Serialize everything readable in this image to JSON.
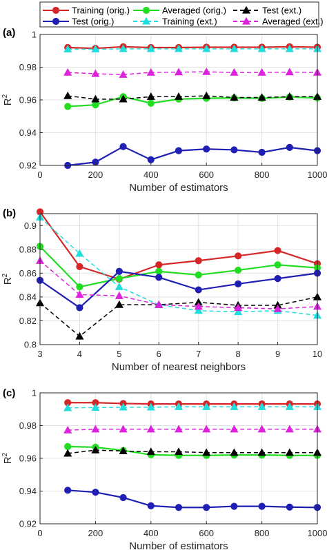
{
  "legend": {
    "entries": [
      {
        "label": "Training (orig.)",
        "color": "#d62728",
        "dash": false,
        "marker": "circle"
      },
      {
        "label": "Averaged (orig.)",
        "color": "#22dd22",
        "dash": false,
        "marker": "circle"
      },
      {
        "label": "Test (ext.)",
        "color": "#000000",
        "dash": true,
        "marker": "triangle"
      },
      {
        "label": "Test (orig.)",
        "color": "#1f1fb4",
        "dash": false,
        "marker": "circle"
      },
      {
        "label": "Training (ext.)",
        "color": "#22dddd",
        "dash": true,
        "marker": "triangle"
      },
      {
        "label": "Averaged (ext.)",
        "color": "#dd22dd",
        "dash": true,
        "marker": "triangle"
      }
    ]
  },
  "chart_data": [
    {
      "panel_label": "(a)",
      "type": "line",
      "xlabel": "Number of estimators",
      "ylabel": "R",
      "ylabel_sup": "2",
      "xlim": [
        0,
        1000
      ],
      "ylim": [
        0.92,
        1.0
      ],
      "xticks": [
        0,
        200,
        400,
        600,
        800,
        1000
      ],
      "xtick_labels": [
        "0",
        "200",
        "400",
        "600",
        "800",
        "1000"
      ],
      "yticks": [
        0.92,
        0.94,
        0.96,
        0.98,
        1.0
      ],
      "ytick_labels": [
        "0.92",
        "0.94",
        "0.96",
        "0.98",
        "1"
      ],
      "grid": true,
      "x": [
        100,
        200,
        300,
        400,
        500,
        600,
        700,
        800,
        900,
        1000
      ],
      "series": [
        {
          "name": "Training (orig.)",
          "values": [
            0.992,
            0.9915,
            0.9925,
            0.992,
            0.992,
            0.9922,
            0.9922,
            0.9922,
            0.9925,
            0.9922
          ]
        },
        {
          "name": "Averaged (orig.)",
          "values": [
            0.956,
            0.957,
            0.962,
            0.958,
            0.9605,
            0.961,
            0.9612,
            0.961,
            0.9618,
            0.9612
          ]
        },
        {
          "name": "Test (ext.)",
          "values": [
            0.9625,
            0.9605,
            0.9605,
            0.962,
            0.962,
            0.9625,
            0.9615,
            0.9615,
            0.962,
            0.962
          ]
        },
        {
          "name": "Test (orig.)",
          "values": [
            0.92,
            0.922,
            0.9315,
            0.9235,
            0.929,
            0.93,
            0.9295,
            0.928,
            0.931,
            0.929
          ]
        },
        {
          "name": "Training (ext.)",
          "values": [
            0.991,
            0.991,
            0.9912,
            0.9912,
            0.9912,
            0.9912,
            0.9912,
            0.9912,
            0.9912,
            0.9912
          ]
        },
        {
          "name": "Averaged (ext.)",
          "values": [
            0.9768,
            0.976,
            0.9755,
            0.9768,
            0.977,
            0.9772,
            0.9768,
            0.9768,
            0.977,
            0.9768
          ]
        }
      ]
    },
    {
      "panel_label": "(b)",
      "type": "line",
      "xlabel": "Number of nearest neighbors",
      "ylabel": "R",
      "ylabel_sup": "2",
      "xlim": [
        3,
        10
      ],
      "ylim": [
        0.8,
        0.91
      ],
      "xticks": [
        3,
        4,
        5,
        6,
        7,
        8,
        9,
        10
      ],
      "xtick_labels": [
        "3",
        "4",
        "5",
        "6",
        "7",
        "8",
        "9",
        "10"
      ],
      "yticks": [
        0.8,
        0.82,
        0.84,
        0.86,
        0.88,
        0.9
      ],
      "ytick_labels": [
        "0.8",
        "0.82",
        "0.84",
        "0.86",
        "0.88",
        "0.9"
      ],
      "grid": true,
      "x": [
        3,
        4,
        5,
        6,
        7,
        8,
        9,
        10
      ],
      "series": [
        {
          "name": "Training (orig.)",
          "values": [
            0.9115,
            0.8655,
            0.855,
            0.867,
            0.8705,
            0.8745,
            0.879,
            0.868
          ]
        },
        {
          "name": "Averaged (orig.)",
          "values": [
            0.8825,
            0.8485,
            0.8555,
            0.8615,
            0.8585,
            0.8625,
            0.867,
            0.8645
          ]
        },
        {
          "name": "Test (ext.)",
          "values": [
            0.835,
            0.807,
            0.8335,
            0.8335,
            0.8355,
            0.833,
            0.833,
            0.84
          ]
        },
        {
          "name": "Test (orig.)",
          "values": [
            0.854,
            0.831,
            0.8615,
            0.8565,
            0.846,
            0.851,
            0.8555,
            0.86
          ]
        },
        {
          "name": "Training (ext.)",
          "values": [
            0.907,
            0.8765,
            0.8485,
            0.8335,
            0.8285,
            0.8275,
            0.8285,
            0.8245
          ]
        },
        {
          "name": "Averaged (ext.)",
          "values": [
            0.8705,
            0.842,
            0.841,
            0.8335,
            0.832,
            0.831,
            0.83,
            0.832
          ]
        }
      ]
    },
    {
      "panel_label": "(c)",
      "type": "line",
      "xlabel": "Number of estimators",
      "ylabel": "R",
      "ylabel_sup": "2",
      "xlim": [
        0,
        1000
      ],
      "ylim": [
        0.92,
        1.0
      ],
      "xticks": [
        0,
        200,
        400,
        600,
        800,
        1000
      ],
      "xtick_labels": [
        "0",
        "200",
        "400",
        "600",
        "800",
        "1000"
      ],
      "yticks": [
        0.92,
        0.94,
        0.96,
        0.98,
        1.0
      ],
      "ytick_labels": [
        "0.92",
        "0.94",
        "0.96",
        "0.98",
        "1"
      ],
      "grid": true,
      "x": [
        100,
        200,
        300,
        400,
        500,
        600,
        700,
        800,
        900,
        1000
      ],
      "series": [
        {
          "name": "Training (orig.)",
          "values": [
            0.994,
            0.994,
            0.9935,
            0.9932,
            0.9932,
            0.9932,
            0.9932,
            0.9932,
            0.9932,
            0.9932
          ]
        },
        {
          "name": "Averaged (orig.)",
          "values": [
            0.9672,
            0.9668,
            0.9648,
            0.9622,
            0.9618,
            0.9618,
            0.962,
            0.962,
            0.9618,
            0.9618
          ]
        },
        {
          "name": "Test (ext.)",
          "values": [
            0.963,
            0.965,
            0.9645,
            0.964,
            0.964,
            0.9635,
            0.9635,
            0.9635,
            0.9635,
            0.9635
          ]
        },
        {
          "name": "Test (orig.)",
          "values": [
            0.9405,
            0.9393,
            0.936,
            0.931,
            0.93,
            0.93,
            0.9307,
            0.9307,
            0.9302,
            0.93
          ]
        },
        {
          "name": "Training (ext.)",
          "values": [
            0.9908,
            0.991,
            0.9912,
            0.9912,
            0.9915,
            0.9915,
            0.9915,
            0.9915,
            0.9915,
            0.9915
          ]
        },
        {
          "name": "Averaged (ext.)",
          "values": [
            0.9772,
            0.9778,
            0.9778,
            0.9778,
            0.9778,
            0.9778,
            0.9778,
            0.9778,
            0.9778,
            0.9778
          ]
        }
      ]
    }
  ]
}
